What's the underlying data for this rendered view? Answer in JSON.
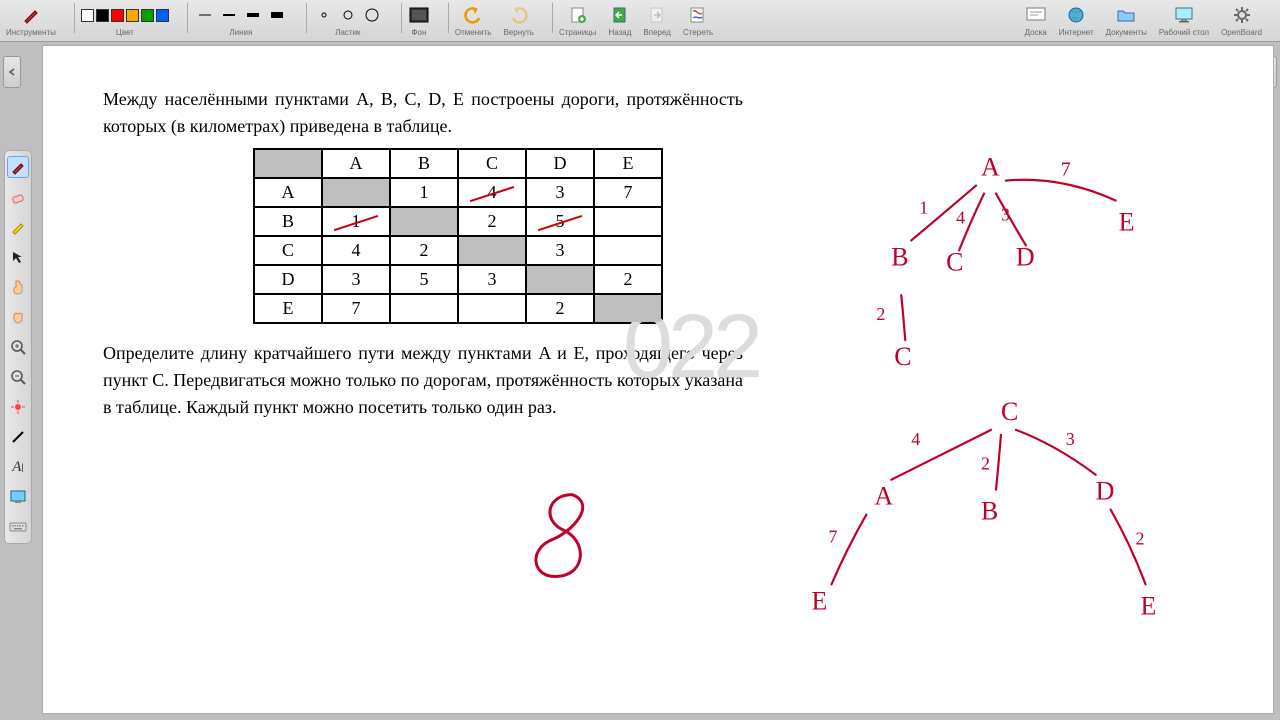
{
  "toolbar": {
    "groups": [
      {
        "id": "tools",
        "label": "Инструменты"
      },
      {
        "id": "color",
        "label": "Цвет",
        "colors": [
          "#ffffff",
          "#000000",
          "#ff0000",
          "#ffa500",
          "#00a000",
          "#0060ff"
        ]
      },
      {
        "id": "line",
        "label": "Линия"
      },
      {
        "id": "eraser",
        "label": "Ластик"
      },
      {
        "id": "bg",
        "label": "Фон"
      },
      {
        "id": "undo",
        "label": "Отменить"
      },
      {
        "id": "redo",
        "label": "Вернуть"
      },
      {
        "id": "pages",
        "label": "Страницы"
      },
      {
        "id": "back",
        "label": "Назад"
      },
      {
        "id": "fwd",
        "label": "Вперед"
      },
      {
        "id": "erase",
        "label": "Стереть"
      }
    ],
    "right": [
      {
        "id": "board",
        "label": "Доска"
      },
      {
        "id": "internet",
        "label": "Интернет"
      },
      {
        "id": "docs",
        "label": "Документы"
      },
      {
        "id": "desktop",
        "label": "Рабочий стол"
      },
      {
        "id": "openboard",
        "label": "OpenBoard"
      }
    ]
  },
  "leftTools": [
    {
      "id": "pen",
      "active": true
    },
    {
      "id": "eraser2"
    },
    {
      "id": "marker"
    },
    {
      "id": "pointer"
    },
    {
      "id": "hand-point"
    },
    {
      "id": "hand-grab"
    },
    {
      "id": "zoom-in"
    },
    {
      "id": "zoom-out"
    },
    {
      "id": "laser"
    },
    {
      "id": "lineTool"
    },
    {
      "id": "text"
    },
    {
      "id": "capture"
    },
    {
      "id": "keyboard"
    }
  ],
  "problem": {
    "p1": "Между населёнными пунктами A, B, C, D, E построены дороги, протяжённость которых (в километрах) приведена в таблице.",
    "p2": "Определите длину кратчайшего пути между пунктами A и E, проходящего через пункт C. Передвигаться можно только по дорогам, протяжённость которых указана в таблице. Каждый пункт можно посетить только один раз."
  },
  "table": {
    "headers": [
      "A",
      "B",
      "C",
      "D",
      "E"
    ],
    "rows": [
      {
        "h": "A",
        "cells": [
          {
            "t": "",
            "shade": true
          },
          {
            "t": "1"
          },
          {
            "t": "4",
            "strike": true
          },
          {
            "t": "3"
          },
          {
            "t": "7"
          }
        ]
      },
      {
        "h": "B",
        "cells": [
          {
            "t": "1",
            "strike": true
          },
          {
            "t": "",
            "shade": true
          },
          {
            "t": "2"
          },
          {
            "t": "5",
            "strike": true
          },
          {
            "t": ""
          }
        ]
      },
      {
        "h": "C",
        "cells": [
          {
            "t": "4"
          },
          {
            "t": "2"
          },
          {
            "t": "",
            "shade": true
          },
          {
            "t": "3"
          },
          {
            "t": ""
          }
        ]
      },
      {
        "h": "D",
        "cells": [
          {
            "t": "3"
          },
          {
            "t": "5"
          },
          {
            "t": "3"
          },
          {
            "t": "",
            "shade": true
          },
          {
            "t": "2"
          }
        ]
      },
      {
        "h": "E",
        "cells": [
          {
            "t": "7"
          },
          {
            "t": ""
          },
          {
            "t": ""
          },
          {
            "t": "2"
          },
          {
            "t": "",
            "shade": true
          }
        ]
      }
    ]
  },
  "watermark": "022",
  "annotations": {
    "ink": "#c1002a",
    "answer": "8",
    "tree1": {
      "root": "A",
      "children": [
        "B",
        "C",
        "D",
        "E"
      ],
      "edge_labels": [
        "1",
        "4",
        "3",
        "7"
      ],
      "sub": {
        "from": "B",
        "label": "2",
        "to": "C"
      }
    },
    "tree2": {
      "root": "C",
      "children": [
        "A",
        "B",
        "D"
      ],
      "edge_labels": [
        "4",
        "2",
        "3"
      ],
      "leaves": [
        {
          "from": "A",
          "to": "E",
          "label": "7"
        },
        {
          "from": "D",
          "to": "E",
          "label": "2"
        }
      ]
    }
  }
}
